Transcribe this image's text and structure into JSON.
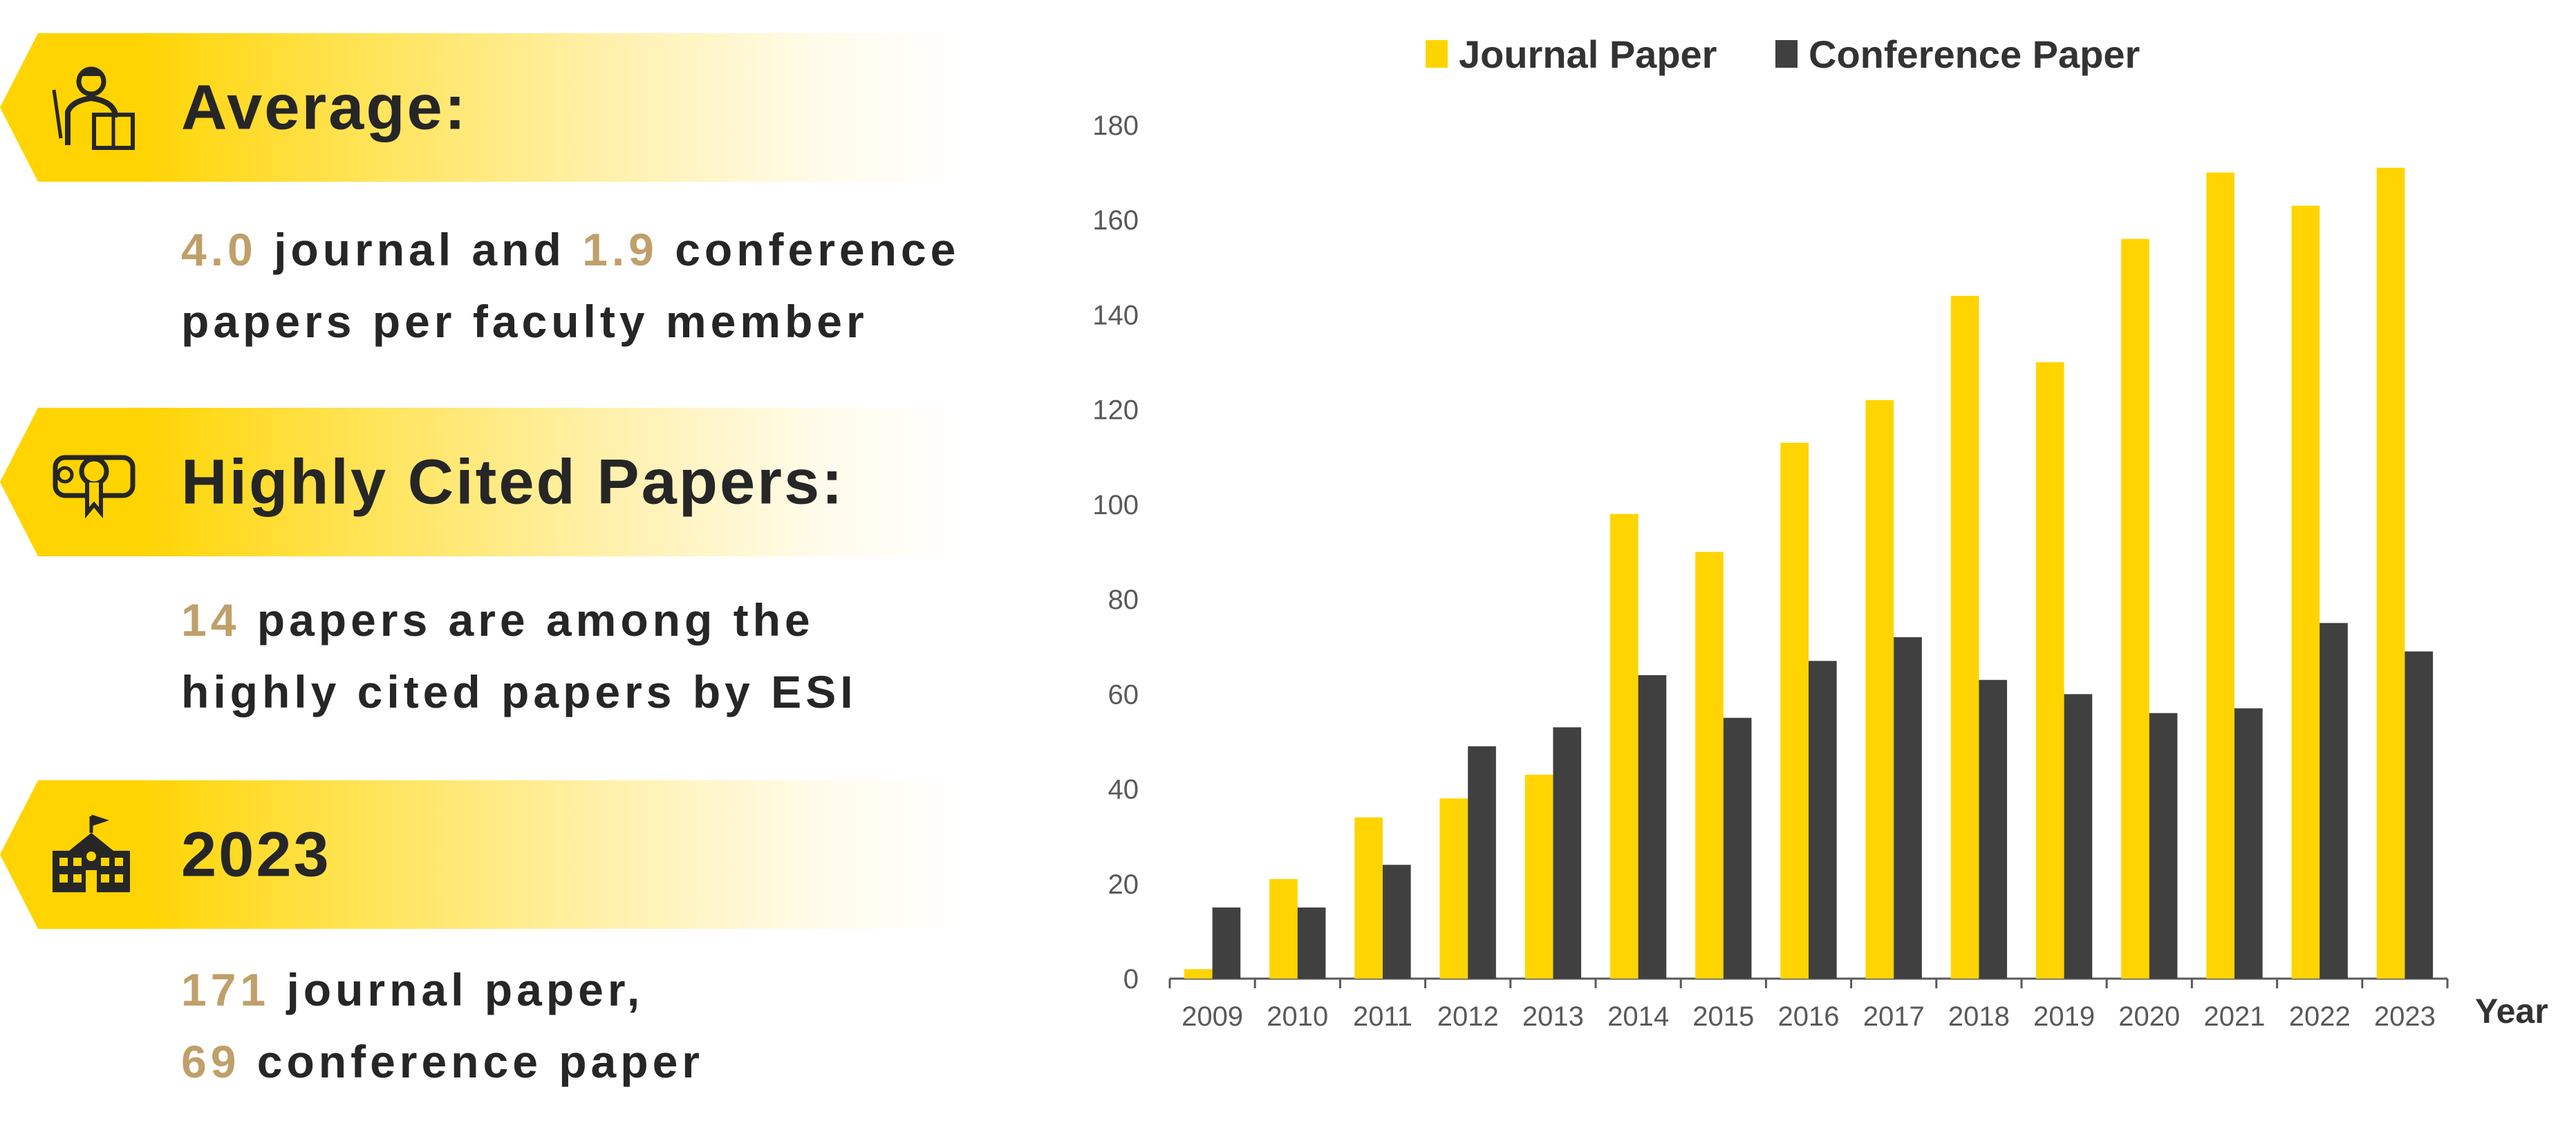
{
  "panels": [
    {
      "title": "Average:",
      "icon": "teacher-icon",
      "lines": [
        [
          {
            "t": "4.0",
            "hl": true
          },
          {
            "t": " journal and ",
            "hl": false
          },
          {
            "t": "1.9",
            "hl": true
          },
          {
            "t": " conference",
            "hl": false
          }
        ],
        [
          {
            "t": "papers per faculty member",
            "hl": false
          }
        ]
      ]
    },
    {
      "title": "Highly Cited Papers:",
      "icon": "diploma-icon",
      "lines": [
        [
          {
            "t": "14",
            "hl": true
          },
          {
            "t": " papers are among the",
            "hl": false
          }
        ],
        [
          {
            "t": "highly cited papers by ESI",
            "hl": false
          }
        ]
      ]
    },
    {
      "title": "2023",
      "icon": "school-building-icon",
      "lines": [
        [
          {
            "t": "171",
            "hl": true
          },
          {
            "t": " journal paper,",
            "hl": false
          }
        ],
        [
          {
            "t": "69",
            "hl": true
          },
          {
            "t": " conference paper",
            "hl": false
          }
        ]
      ]
    }
  ],
  "colors": {
    "journal": "#FFD400",
    "conference": "#404040",
    "highlight": "#BFA06A"
  },
  "chart_data": {
    "type": "bar",
    "title": "",
    "xlabel": "Year",
    "ylabel": "",
    "ylim": [
      0,
      180
    ],
    "yticks": [
      0,
      20,
      40,
      60,
      80,
      100,
      120,
      140,
      160,
      180
    ],
    "legend_position": "top",
    "grid": false,
    "categories": [
      "2009",
      "2010",
      "2011",
      "2012",
      "2013",
      "2014",
      "2015",
      "2016",
      "2017",
      "2018",
      "2019",
      "2020",
      "2021",
      "2022",
      "2023"
    ],
    "series": [
      {
        "name": "Journal Paper",
        "color": "#FFD400",
        "values": [
          2,
          21,
          34,
          38,
          43,
          98,
          90,
          113,
          122,
          144,
          130,
          156,
          170,
          163,
          171
        ]
      },
      {
        "name": "Conference Paper",
        "color": "#404040",
        "values": [
          15,
          15,
          24,
          49,
          53,
          64,
          55,
          67,
          72,
          63,
          60,
          56,
          57,
          75,
          69
        ]
      }
    ]
  }
}
